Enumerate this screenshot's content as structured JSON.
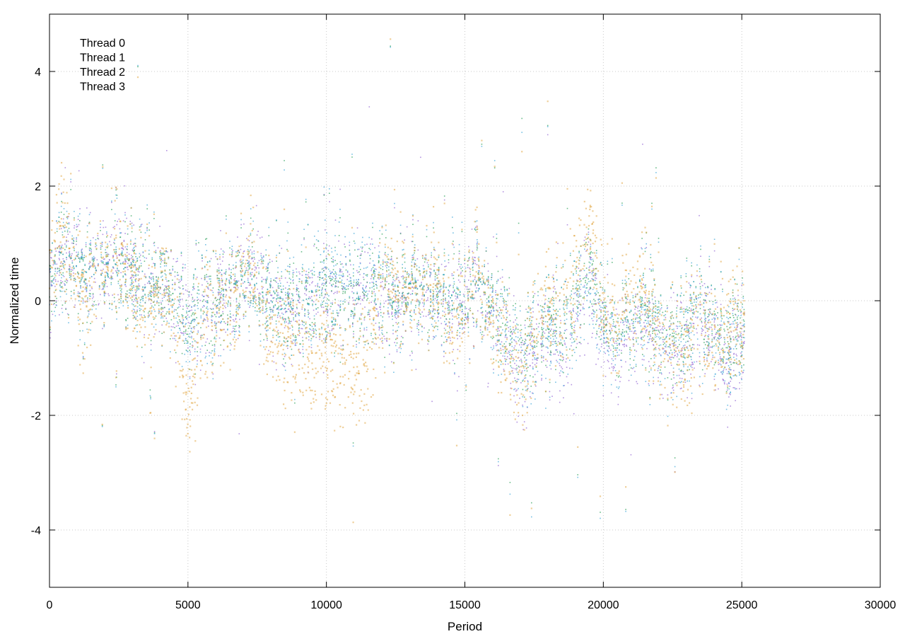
{
  "chart_data": {
    "type": "scatter",
    "xlabel": "Period",
    "ylabel": "Normalized time",
    "xlim": [
      0,
      30000
    ],
    "ylim": [
      -5,
      5
    ],
    "xticks": [
      0,
      5000,
      10000,
      15000,
      20000,
      25000,
      30000
    ],
    "yticks": [
      -4,
      -2,
      0,
      2,
      4
    ],
    "xtick_labels": [
      "0",
      "5000",
      "10000",
      "15000",
      "20000",
      "25000",
      "30000"
    ],
    "ytick_labels": [
      "-4",
      "-2",
      "0",
      "2",
      "4"
    ],
    "grid": true,
    "legend_position": "top-left",
    "series": [
      {
        "name": "Thread 0",
        "color": "#9467d4",
        "trend_x": [
          0,
          500,
          1000,
          1500,
          2000,
          2500,
          3000,
          3500,
          4000,
          4500,
          5000,
          5500,
          6000,
          6500,
          7000,
          7500,
          8000,
          8500,
          9000,
          9500,
          10000,
          10500,
          11000,
          11500,
          12000,
          12500,
          13000,
          13500,
          14000,
          14500,
          15000,
          15500,
          16000,
          16500,
          17000,
          17500,
          18000,
          18500,
          19000,
          19500,
          20000,
          20500,
          21000,
          21500,
          22000,
          22500,
          23000,
          23500,
          24000,
          24500,
          25000
        ],
        "trend_y": [
          0.2,
          0.9,
          0.6,
          0.4,
          0.5,
          0.7,
          0.6,
          0.2,
          0.3,
          0.1,
          -0.3,
          -0.1,
          0.0,
          0.0,
          0.3,
          0.4,
          0.1,
          -0.3,
          -0.1,
          0.0,
          0.2,
          0.3,
          0.1,
          0.2,
          0.1,
          0.0,
          0.2,
          0.1,
          0.0,
          -0.1,
          0.0,
          0.2,
          -0.1,
          -0.6,
          -1.3,
          -1.0,
          -0.5,
          -0.8,
          -0.2,
          0.5,
          -0.6,
          -0.9,
          -0.5,
          -0.4,
          -0.8,
          -0.6,
          -0.9,
          -0.4,
          -0.6,
          -1.2,
          -0.8
        ],
        "spread": 0.75
      },
      {
        "name": "Thread 1",
        "color": "#2fa35b",
        "trend_x": [
          0,
          500,
          1000,
          1500,
          2000,
          2500,
          3000,
          3500,
          4000,
          4500,
          5000,
          5500,
          6000,
          6500,
          7000,
          7500,
          8000,
          8500,
          9000,
          9500,
          10000,
          10500,
          11000,
          11500,
          12000,
          12500,
          13000,
          13500,
          14000,
          14500,
          15000,
          15500,
          16000,
          16500,
          17000,
          17500,
          18000,
          18500,
          19000,
          19500,
          20000,
          20500,
          21000,
          21500,
          22000,
          22500,
          23000,
          23500,
          24000,
          24500,
          25000
        ],
        "trend_y": [
          0.3,
          0.8,
          0.6,
          0.4,
          0.5,
          0.6,
          0.5,
          0.2,
          0.3,
          0.2,
          -0.2,
          0.0,
          0.1,
          0.1,
          0.3,
          0.3,
          0.1,
          -0.2,
          0.0,
          0.1,
          0.2,
          0.2,
          0.1,
          0.2,
          0.2,
          0.1,
          0.2,
          0.1,
          0.1,
          0.0,
          0.1,
          0.2,
          0.0,
          -0.4,
          -0.9,
          -0.7,
          -0.3,
          -0.4,
          0.0,
          0.6,
          -0.3,
          -0.6,
          -0.3,
          -0.2,
          -0.5,
          -0.4,
          -0.6,
          -0.2,
          -0.4,
          -0.8,
          -0.4
        ],
        "spread": 0.7
      },
      {
        "name": "Thread 2",
        "color": "#3ea7d8",
        "trend_x": [
          0,
          500,
          1000,
          1500,
          2000,
          2500,
          3000,
          3500,
          4000,
          4500,
          5000,
          5500,
          6000,
          6500,
          7000,
          7500,
          8000,
          8500,
          9000,
          9500,
          10000,
          10500,
          11000,
          11500,
          12000,
          12500,
          13000,
          13500,
          14000,
          14500,
          15000,
          15500,
          16000,
          16500,
          17000,
          17500,
          18000,
          18500,
          19000,
          19500,
          20000,
          20500,
          21000,
          21500,
          22000,
          22500,
          23000,
          23500,
          24000,
          24500,
          25000
        ],
        "trend_y": [
          0.2,
          0.8,
          0.6,
          0.4,
          0.5,
          0.6,
          0.5,
          0.2,
          0.2,
          0.1,
          -0.3,
          -0.1,
          0.0,
          0.1,
          0.3,
          0.3,
          0.1,
          -0.2,
          0.0,
          0.1,
          0.3,
          0.3,
          0.1,
          0.3,
          0.2,
          0.1,
          0.2,
          0.1,
          0.0,
          0.0,
          0.1,
          0.2,
          -0.1,
          -0.5,
          -1.1,
          -0.9,
          -0.4,
          -0.5,
          -0.1,
          0.4,
          -0.4,
          -0.7,
          -0.3,
          -0.3,
          -0.6,
          -0.5,
          -0.7,
          -0.3,
          -0.5,
          -1.0,
          -0.5
        ],
        "spread": 0.8
      },
      {
        "name": "Thread 3",
        "color": "#e2a845",
        "trend_x": [
          0,
          500,
          1000,
          1500,
          2000,
          2500,
          3000,
          3500,
          4000,
          4500,
          5000,
          5500,
          6000,
          6500,
          7000,
          7500,
          8000,
          8500,
          9000,
          9500,
          10000,
          10500,
          11000,
          11500,
          12000,
          12500,
          13000,
          13500,
          14000,
          14500,
          15000,
          15500,
          16000,
          16500,
          17000,
          17500,
          18000,
          18500,
          19000,
          19500,
          20000,
          20500,
          21000,
          21500,
          22000,
          22500,
          23000,
          23500,
          24000,
          24500,
          25000
        ],
        "trend_y": [
          0.5,
          1.3,
          0.2,
          0.2,
          0.6,
          0.8,
          0.4,
          -0.2,
          0.3,
          0.0,
          -1.7,
          -0.4,
          0.0,
          -0.2,
          0.4,
          0.5,
          -0.6,
          -0.8,
          -0.6,
          -1.0,
          -0.8,
          -1.0,
          -1.2,
          -1.0,
          0.1,
          0.4,
          0.1,
          0.0,
          0.3,
          -0.6,
          0.0,
          0.4,
          -0.3,
          -0.8,
          -1.5,
          -0.6,
          0.0,
          -0.2,
          0.3,
          1.4,
          -0.2,
          -0.4,
          0.2,
          0.0,
          -0.8,
          -0.5,
          -1.1,
          -0.4,
          -0.7,
          -0.6,
          -0.3
        ],
        "spread": 0.85
      }
    ]
  }
}
